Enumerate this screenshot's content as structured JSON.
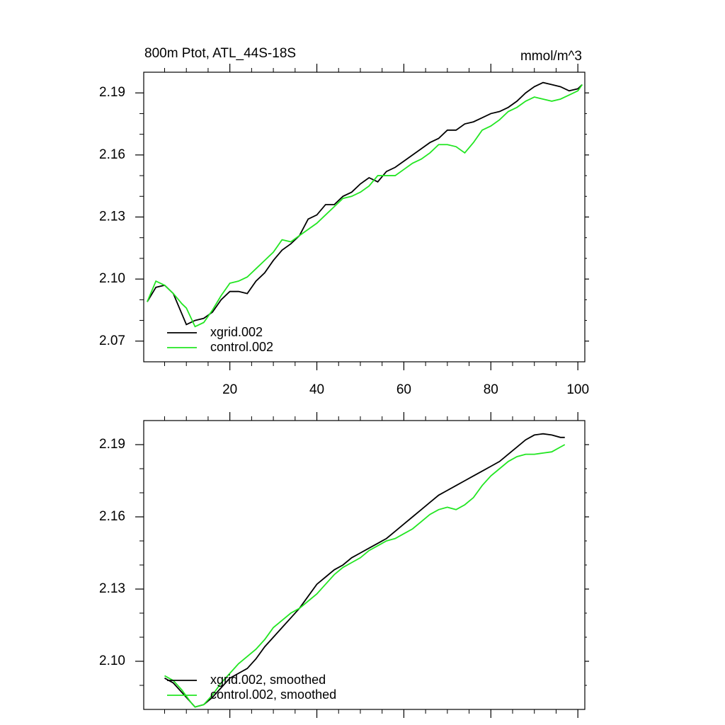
{
  "chart_data": [
    {
      "type": "line",
      "title": "800m Ptot, ATL_44S-18S",
      "units_label": "mmol/m^3",
      "x": [
        1,
        3,
        5,
        7,
        9,
        10,
        12,
        14,
        16,
        18,
        20,
        22,
        24,
        26,
        28,
        30,
        32,
        34,
        36,
        38,
        40,
        42,
        44,
        46,
        48,
        50,
        52,
        54,
        56,
        58,
        60,
        62,
        64,
        66,
        68,
        70,
        72,
        74,
        76,
        78,
        80,
        82,
        84,
        86,
        88,
        90,
        92,
        94,
        96,
        98,
        100,
        101
      ],
      "series": [
        {
          "name": "xgrid.002",
          "color": "#000000",
          "values": [
            2.089,
            2.096,
            2.097,
            2.093,
            2.083,
            2.078,
            2.08,
            2.081,
            2.084,
            2.09,
            2.094,
            2.094,
            2.093,
            2.099,
            2.103,
            2.109,
            2.114,
            2.117,
            2.121,
            2.129,
            2.131,
            2.136,
            2.136,
            2.14,
            2.142,
            2.146,
            2.149,
            2.147,
            2.152,
            2.154,
            2.157,
            2.16,
            2.163,
            2.166,
            2.168,
            2.172,
            2.172,
            2.175,
            2.176,
            2.178,
            2.18,
            2.181,
            2.183,
            2.186,
            2.19,
            2.193,
            2.195,
            2.194,
            2.193,
            2.191,
            2.192,
            2.194
          ]
        },
        {
          "name": "control.002",
          "color": "#22e622",
          "values": [
            2.089,
            2.099,
            2.097,
            2.093,
            2.088,
            2.086,
            2.077,
            2.079,
            2.085,
            2.092,
            2.098,
            2.099,
            2.101,
            2.105,
            2.109,
            2.113,
            2.119,
            2.118,
            2.121,
            2.124,
            2.127,
            2.131,
            2.135,
            2.139,
            2.14,
            2.142,
            2.145,
            2.15,
            2.15,
            2.15,
            2.153,
            2.156,
            2.158,
            2.161,
            2.165,
            2.165,
            2.164,
            2.161,
            2.166,
            2.172,
            2.174,
            2.177,
            2.181,
            2.183,
            2.186,
            2.188,
            2.187,
            2.186,
            2.187,
            2.189,
            2.191,
            2.194
          ]
        }
      ],
      "xlim": [
        0.2,
        101.6
      ],
      "xticks": [
        20,
        40,
        60,
        80,
        100
      ],
      "xminorticks": [
        5,
        10,
        15,
        25,
        30,
        35,
        45,
        50,
        55,
        65,
        70,
        75,
        85,
        90,
        95
      ],
      "ylim": [
        2.06,
        2.2
      ],
      "yticks": [
        2.07,
        {
          "value": 2.1,
          "label": "2.10"
        },
        2.13,
        2.16,
        2.19
      ],
      "yminorticks": [
        2.08,
        2.09,
        2.11,
        2.12,
        2.14,
        2.15,
        2.17,
        2.18
      ],
      "legend": "lower left"
    },
    {
      "type": "line",
      "x": [
        5,
        7,
        9,
        11,
        12,
        14,
        16,
        18,
        20,
        22,
        24,
        26,
        28,
        30,
        32,
        34,
        36,
        38,
        40,
        42,
        44,
        46,
        48,
        50,
        52,
        54,
        56,
        58,
        60,
        62,
        64,
        66,
        68,
        70,
        72,
        74,
        76,
        78,
        80,
        82,
        84,
        86,
        88,
        90,
        92,
        94,
        96,
        97
      ],
      "series": [
        {
          "name": "xgrid.002, smoothed",
          "color": "#000000",
          "values": [
            2.093,
            2.091,
            2.087,
            2.083,
            2.081,
            2.082,
            2.085,
            2.089,
            2.093,
            2.095,
            2.097,
            2.101,
            2.106,
            2.11,
            2.114,
            2.118,
            2.122,
            2.127,
            2.132,
            2.135,
            2.138,
            2.14,
            2.143,
            2.145,
            2.147,
            2.149,
            2.151,
            2.154,
            2.157,
            2.16,
            2.163,
            2.166,
            2.169,
            2.171,
            2.173,
            2.175,
            2.177,
            2.179,
            2.181,
            2.183,
            2.186,
            2.189,
            2.192,
            2.194,
            2.1945,
            2.194,
            2.193,
            2.193
          ]
        },
        {
          "name": "control.002, smoothed",
          "color": "#22e622",
          "values": [
            2.094,
            2.092,
            2.088,
            2.083,
            2.081,
            2.082,
            2.086,
            2.091,
            2.095,
            2.099,
            2.102,
            2.105,
            2.109,
            2.114,
            2.117,
            2.12,
            2.122,
            2.125,
            2.128,
            2.132,
            2.136,
            2.139,
            2.141,
            2.143,
            2.146,
            2.148,
            2.15,
            2.151,
            2.153,
            2.155,
            2.158,
            2.161,
            2.163,
            2.164,
            2.163,
            2.165,
            2.168,
            2.173,
            2.177,
            2.18,
            2.183,
            2.185,
            2.186,
            2.186,
            2.1865,
            2.187,
            2.189,
            2.19
          ]
        }
      ],
      "xlim": [
        0.2,
        101.6
      ],
      "ylim": [
        2.08,
        2.2
      ],
      "yticks": [
        {
          "value": 2.1,
          "label": "2.10"
        },
        2.13,
        2.16,
        2.19
      ],
      "yminorticks": [
        2.09,
        2.11,
        2.12,
        2.14,
        2.15,
        2.17,
        2.18
      ],
      "legend": "lower left"
    }
  ]
}
